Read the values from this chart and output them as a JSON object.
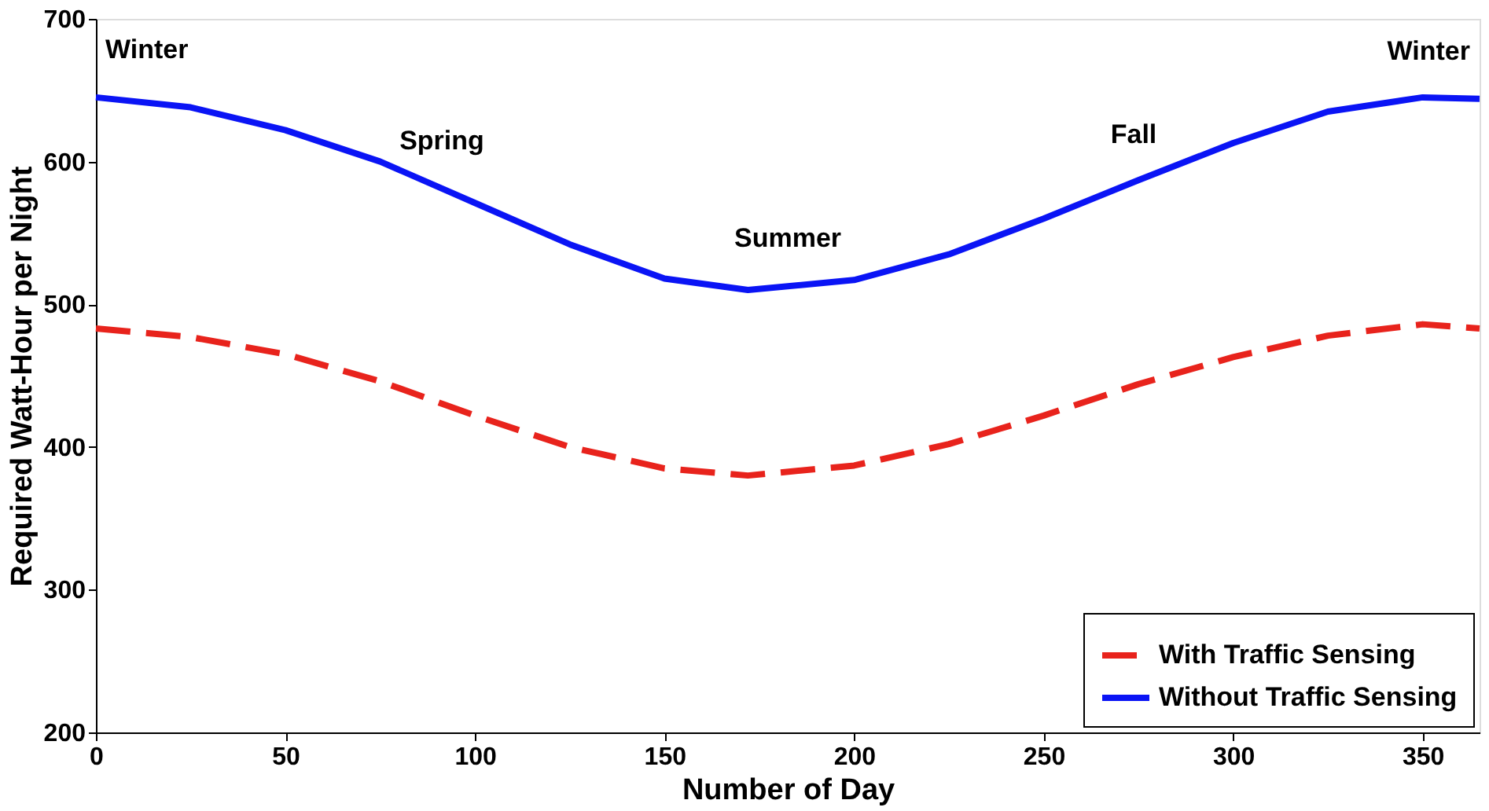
{
  "chart_data": {
    "type": "line",
    "xlabel": "Number of Day",
    "ylabel": "Required Watt-Hour per Night",
    "x": [
      0,
      25,
      50,
      75,
      100,
      125,
      150,
      172,
      200,
      225,
      250,
      275,
      300,
      325,
      350,
      365
    ],
    "series": [
      {
        "name": "With Traffic Sensing",
        "color": "#e8231c",
        "line_style": "dashed",
        "values": [
          483,
          477,
          465,
          446,
          422,
          400,
          385,
          380,
          387,
          402,
          422,
          444,
          463,
          478,
          486,
          483
        ]
      },
      {
        "name": "Without Traffic Sensing",
        "color": "#0a14f5",
        "line_style": "solid",
        "values": [
          645,
          638,
          622,
          600,
          571,
          542,
          518,
          510,
          517,
          535,
          560,
          587,
          613,
          635,
          645,
          644
        ]
      }
    ],
    "xlim": [
      0,
      365
    ],
    "ylim": [
      200,
      700
    ],
    "xticks": [
      0,
      50,
      100,
      150,
      200,
      250,
      300,
      350
    ],
    "yticks": [
      200,
      300,
      400,
      500,
      600,
      700
    ],
    "annotations": [
      "Winter",
      "Spring",
      "Summer",
      "Fall",
      "Winter"
    ],
    "grid": false,
    "legend": "bottom right",
    "marker": "none"
  }
}
